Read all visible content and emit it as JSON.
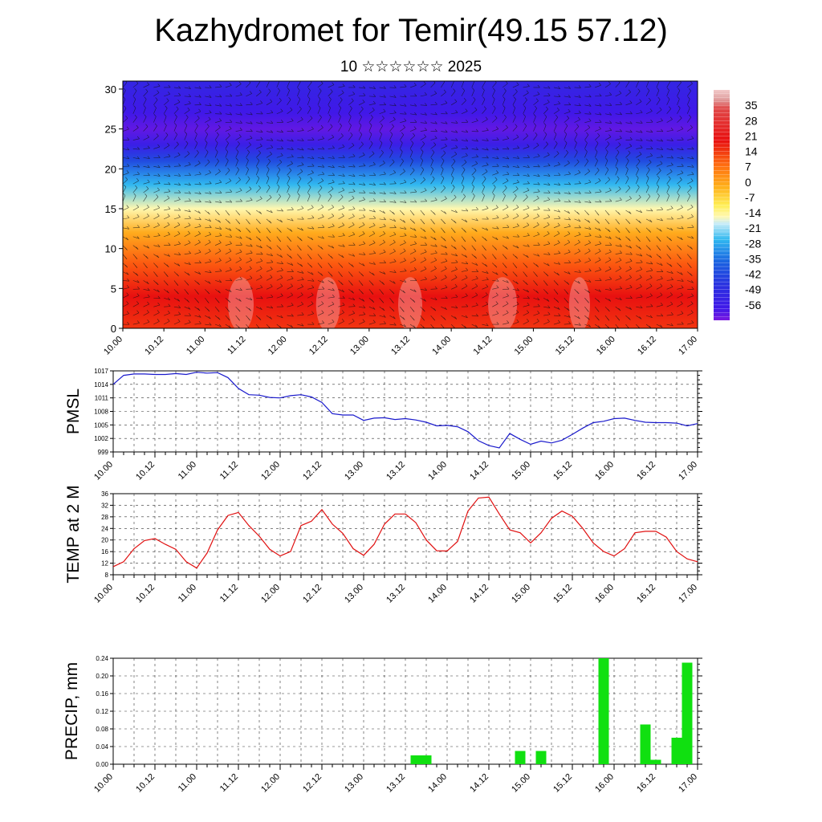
{
  "header": {
    "title": "Kazhydromet for Temir(49.15 57.12)",
    "subtitle": "10 ☆☆☆☆☆☆ 2025"
  },
  "time_labels": [
    "10.00",
    "10.12",
    "11.00",
    "11.12",
    "12.00",
    "12.12",
    "13.00",
    "13.12",
    "14.00",
    "14.12",
    "15.00",
    "15.12",
    "16.00",
    "16.12",
    "17.00"
  ],
  "chart_data": [
    {
      "type": "heatmap",
      "title": "",
      "xlabel": "",
      "ylabel": "",
      "x_categories": [
        "10.00",
        "10.12",
        "11.00",
        "11.12",
        "12.00",
        "12.12",
        "13.00",
        "13.12",
        "14.00",
        "14.12",
        "15.00",
        "15.12",
        "16.00",
        "16.12",
        "17.00"
      ],
      "ylim": [
        0,
        31
      ],
      "yticks": [
        0,
        5,
        10,
        15,
        20,
        25,
        30
      ],
      "colorbar": {
        "labels": [
          "35",
          "28",
          "21",
          "14",
          "7",
          "0",
          "-7",
          "-14",
          "-21",
          "-28",
          "-35",
          "-42",
          "-49",
          "-56"
        ],
        "range": [
          -63,
          42
        ]
      },
      "temperature_profile": [
        {
          "level": 0,
          "value": 18
        },
        {
          "level": 4,
          "value": 21
        },
        {
          "level": 8,
          "value": 15
        },
        {
          "level": 12,
          "value": 4
        },
        {
          "level": 15,
          "value": -10
        },
        {
          "level": 18,
          "value": -28
        },
        {
          "level": 21,
          "value": -45
        },
        {
          "level": 23,
          "value": -54
        },
        {
          "level": 25,
          "value": -60
        },
        {
          "level": 27,
          "value": -56
        },
        {
          "level": 31,
          "value": -52
        }
      ],
      "wind_barbs": true
    },
    {
      "type": "line",
      "title": "",
      "ylabel": "PMSL",
      "xlabel": "",
      "ylim": [
        999,
        1017
      ],
      "yticks": [
        999,
        1002,
        1005,
        1008,
        1011,
        1014,
        1017
      ],
      "color": "#1a1acc",
      "x": [
        0,
        1,
        2,
        3,
        4,
        5,
        6,
        7,
        8,
        9,
        10,
        11,
        12,
        13,
        14,
        15,
        16,
        17,
        18,
        19,
        20,
        21,
        22,
        23,
        24,
        25,
        26,
        27,
        28,
        29,
        30,
        31,
        32,
        33,
        34,
        35,
        36,
        37,
        38,
        39,
        40,
        41,
        42,
        43,
        44,
        45,
        46,
        47,
        48,
        49,
        50,
        51,
        52,
        53,
        54,
        55,
        56
      ],
      "values": [
        1014,
        1016,
        1016.3,
        1016.3,
        1016.2,
        1016.2,
        1016.4,
        1016.2,
        1016.7,
        1016.5,
        1016.6,
        1015.5,
        1013.1,
        1011.7,
        1011.6,
        1011.1,
        1011,
        1011.5,
        1011.7,
        1011.2,
        1010,
        1007.5,
        1007.2,
        1007.2,
        1006,
        1006.5,
        1006.6,
        1006.2,
        1006.4,
        1006.1,
        1005.6,
        1004.8,
        1004.9,
        1004.6,
        1003.5,
        1001.5,
        1000.4,
        999.9,
        1003.1,
        1001.8,
        1000.7,
        1001.4,
        1001,
        1001.6,
        1002.9,
        1004.3,
        1005.5,
        1005.8,
        1006.4,
        1006.5,
        1006,
        1005.6,
        1005.5,
        1005.5,
        1005.4,
        1004.8,
        1005.3
      ]
    },
    {
      "type": "line",
      "title": "",
      "ylabel": "TEMP at 2 M",
      "xlabel": "",
      "ylim": [
        8,
        36
      ],
      "yticks": [
        8,
        12,
        16,
        20,
        24,
        28,
        32,
        36
      ],
      "color": "#e01010",
      "x": [
        0,
        1,
        2,
        3,
        4,
        5,
        6,
        7,
        8,
        9,
        10,
        11,
        12,
        13,
        14,
        15,
        16,
        17,
        18,
        19,
        20,
        21,
        22,
        23,
        24,
        25,
        26,
        27,
        28,
        29,
        30,
        31,
        32,
        33,
        34,
        35,
        36,
        37,
        38,
        39,
        40,
        41,
        42,
        43,
        44,
        45,
        46,
        47,
        48,
        49,
        50,
        51,
        52,
        53,
        54,
        55,
        56
      ],
      "values": [
        10.8,
        12.5,
        17,
        19.8,
        20.5,
        18.5,
        16.8,
        12.5,
        10.3,
        15.5,
        23.5,
        28.5,
        29.5,
        25,
        21.3,
        16.8,
        14.5,
        16,
        25,
        26.5,
        30.5,
        25.5,
        22.3,
        17,
        14.7,
        18.5,
        25.5,
        29,
        29,
        26,
        20,
        16.3,
        16.2,
        19.5,
        30,
        34.5,
        34.8,
        29,
        23.5,
        22.5,
        19,
        22.5,
        27.5,
        30,
        28.2,
        24,
        19,
        16,
        14.5,
        17,
        22.5,
        23,
        23,
        21,
        16,
        13.5,
        12.5
      ]
    },
    {
      "type": "bar",
      "title": "",
      "ylabel": "PRECIP, mm",
      "xlabel": "",
      "ylim": [
        0,
        0.24
      ],
      "yticks": [
        "0.00",
        "0.04",
        "0.08",
        "0.12",
        "0.16",
        "0.20",
        "0.24"
      ],
      "color": "#10e010",
      "bars": [
        {
          "x": 29,
          "value": 0.02
        },
        {
          "x": 30,
          "value": 0.02
        },
        {
          "x": 39,
          "value": 0.03
        },
        {
          "x": 41,
          "value": 0.03
        },
        {
          "x": 47,
          "value": 0.24
        },
        {
          "x": 51,
          "value": 0.09
        },
        {
          "x": 52,
          "value": 0.01
        },
        {
          "x": 54,
          "value": 0.06
        },
        {
          "x": 55,
          "value": 0.23
        }
      ]
    }
  ]
}
